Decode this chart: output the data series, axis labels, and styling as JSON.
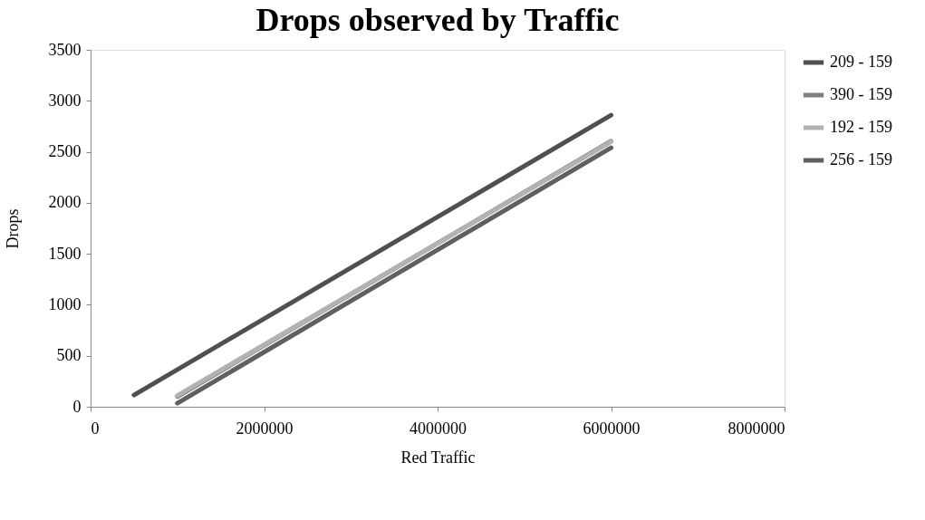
{
  "chart_data": {
    "type": "line",
    "title": "Drops observed by Traffic",
    "xlabel": "Red Traffic",
    "ylabel": "Drops",
    "xlim": [
      0,
      8000000
    ],
    "xticks": [
      0,
      2000000,
      4000000,
      6000000,
      8000000
    ],
    "ylim": [
      0,
      3500
    ],
    "yticks": [
      0,
      500,
      1000,
      1500,
      2000,
      2500,
      3000,
      3500
    ],
    "grid": false,
    "legend": "right",
    "marker": "none",
    "line_style": "solid",
    "series": [
      {
        "name": "209 - 159",
        "color": "#505050",
        "x": [
          500000,
          6000000
        ],
        "values": [
          115,
          2860
        ]
      },
      {
        "name": "390 - 159",
        "color": "#808080",
        "x": [
          1000000,
          6000000
        ],
        "values": [
          100,
          2605
        ]
      },
      {
        "name": "192 - 159",
        "color": "#b2b2b2",
        "x": [
          1000000,
          6000000
        ],
        "values": [
          110,
          2600
        ]
      },
      {
        "name": "256 - 159",
        "color": "#606060",
        "x": [
          1000000,
          6000000
        ],
        "values": [
          35,
          2540
        ]
      }
    ]
  }
}
